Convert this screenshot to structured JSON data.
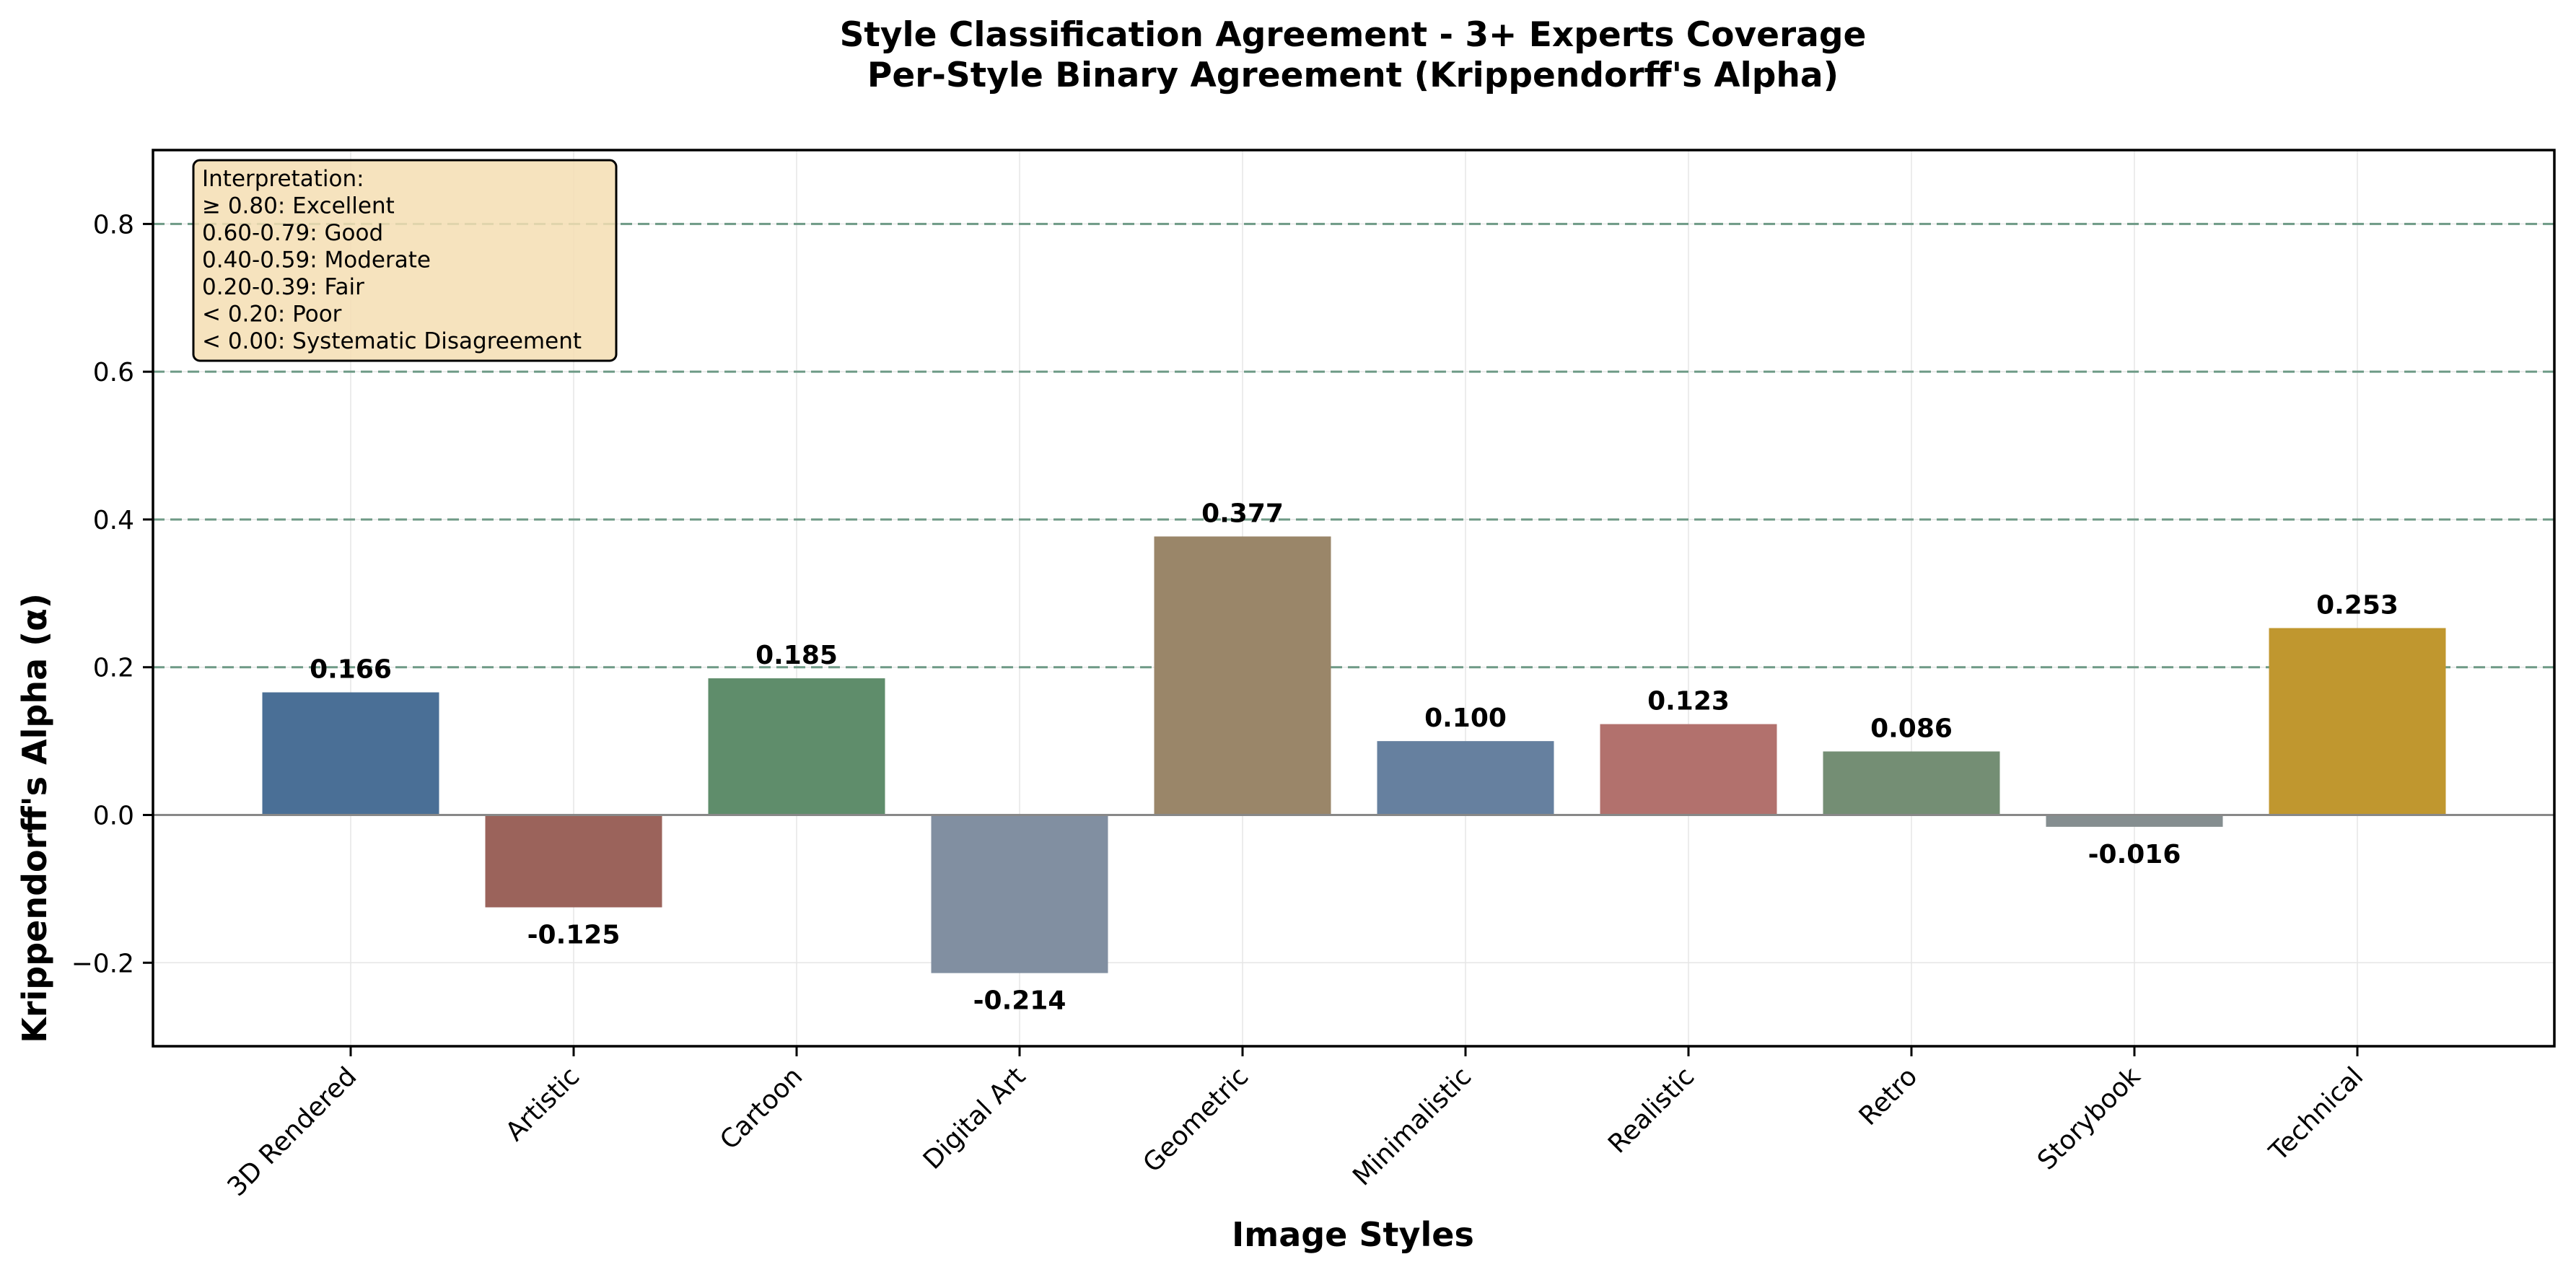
{
  "chart_data": {
    "type": "bar",
    "title": "Style Classification Agreement - 3+ Experts Coverage",
    "subtitle": "Per-Style Binary Agreement (Krippendorff's Alpha)",
    "xlabel": "Image Styles",
    "ylabel": "Krippendorff's Alpha (α)",
    "ylim": [
      -0.313,
      0.9
    ],
    "yticks": [
      -0.2,
      0.0,
      0.2,
      0.4,
      0.6,
      0.8
    ],
    "ytick_labels": [
      "−0.2",
      "0.0",
      "0.2",
      "0.4",
      "0.6",
      "0.8"
    ],
    "categories": [
      "3D Rendered",
      "Artistic",
      "Cartoon",
      "Digital Art",
      "Geometric",
      "Minimalistic",
      "Realistic",
      "Retro",
      "Storybook",
      "Technical"
    ],
    "values": [
      0.166,
      -0.125,
      0.185,
      -0.214,
      0.377,
      0.1,
      0.123,
      0.086,
      -0.016,
      0.253
    ],
    "value_labels": [
      "0.166",
      "-0.125",
      "0.185",
      "-0.214",
      "0.377",
      "0.100",
      "0.123",
      "0.086",
      "-0.016",
      "0.253"
    ],
    "colors": [
      "#4a6f96",
      "#9b635b",
      "#5f8d6b",
      "#818fa1",
      "#9a8669",
      "#66809f",
      "#b2716d",
      "#748e74",
      "#858e90",
      "#c0972f"
    ],
    "reference_lines": [
      0.2,
      0.4,
      0.6,
      0.8
    ],
    "grid": true,
    "legend": {
      "placement": "top-left",
      "lines": [
        "Interpretation:",
        "≥ 0.80: Excellent",
        "0.60-0.79: Good",
        "0.40-0.59: Moderate",
        "0.20-0.39: Fair",
        "< 0.20: Poor",
        "< 0.00: Systematic Disagreement"
      ]
    }
  }
}
